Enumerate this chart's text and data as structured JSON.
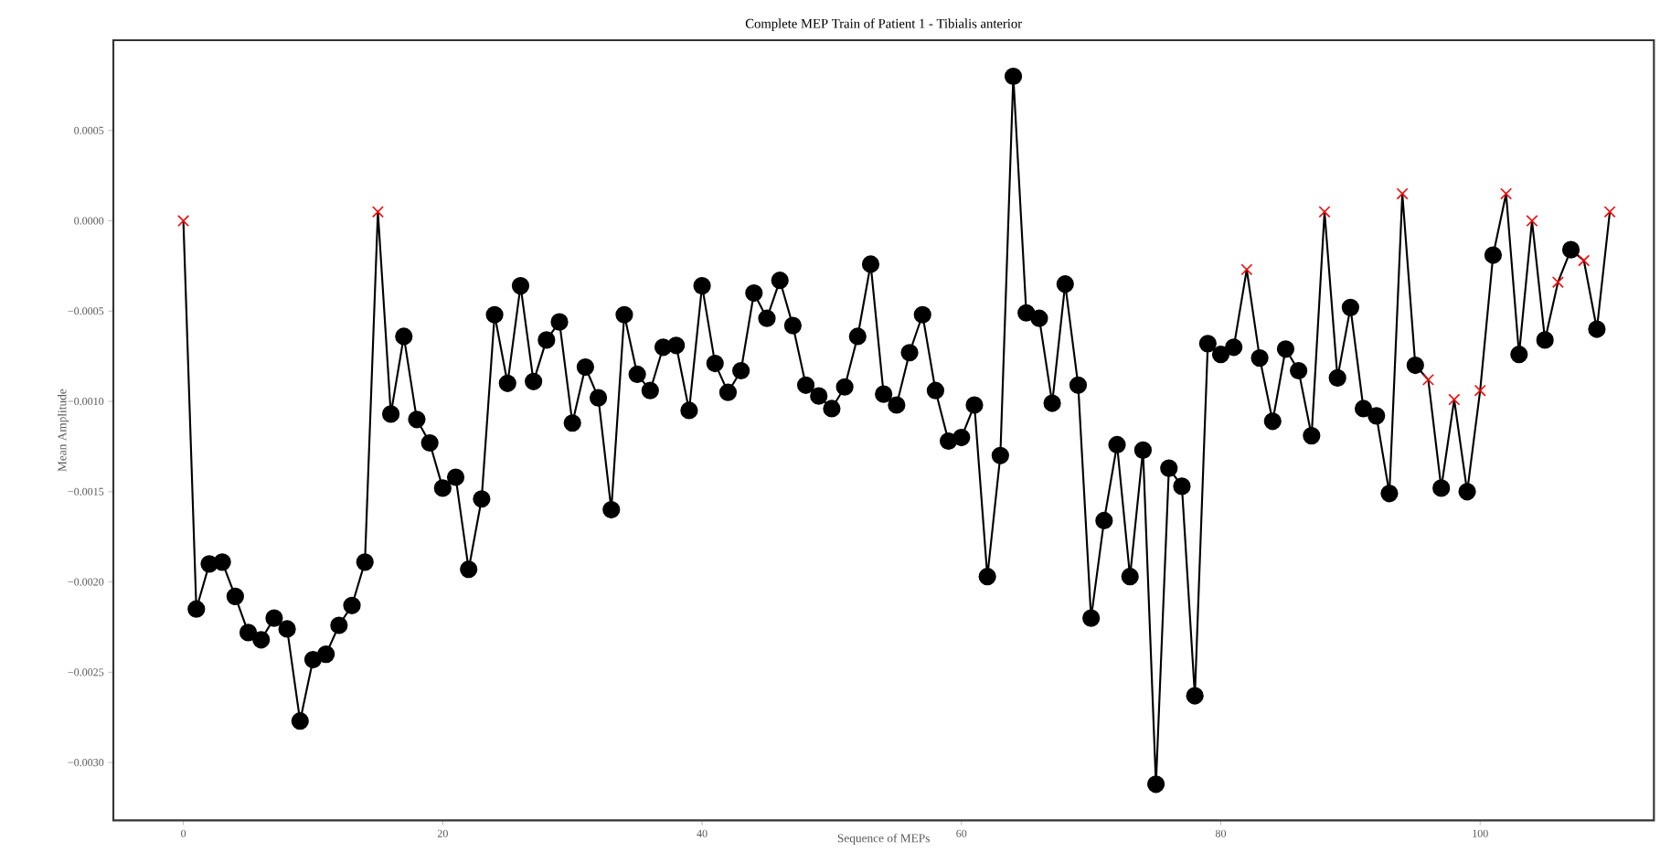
{
  "chart_data": {
    "type": "line",
    "title": "Complete MEP Train of Patient 1 - Tibialis anterior",
    "xlabel": "Sequence of MEPs",
    "ylabel": "Mean Amplitude",
    "x": [
      0,
      1,
      2,
      3,
      4,
      5,
      6,
      7,
      8,
      9,
      10,
      11,
      12,
      13,
      14,
      15,
      16,
      17,
      18,
      19,
      20,
      21,
      22,
      23,
      24,
      25,
      26,
      27,
      28,
      29,
      30,
      31,
      32,
      33,
      34,
      35,
      36,
      37,
      38,
      39,
      40,
      41,
      42,
      43,
      44,
      45,
      46,
      47,
      48,
      49,
      50,
      51,
      52,
      53,
      54,
      55,
      56,
      57,
      58,
      59,
      60,
      61,
      62,
      63,
      64,
      65,
      66,
      67,
      68,
      69,
      70,
      71,
      72,
      73,
      74,
      75,
      76,
      77,
      78,
      79,
      80,
      81,
      82,
      83,
      84,
      85,
      86,
      87,
      88,
      89,
      90,
      91,
      92,
      93,
      94,
      95,
      96,
      97,
      98,
      99,
      100,
      101,
      102,
      103,
      104,
      105,
      106,
      107,
      108,
      109,
      110
    ],
    "series": [
      {
        "color": "#000000",
        "marker": "none",
        "values": [
          0.0,
          -0.00215,
          -0.0019,
          -0.00189,
          -0.00208,
          -0.00228,
          -0.00232,
          -0.0022,
          -0.00226,
          -0.00277,
          -0.00243,
          -0.0024,
          -0.00224,
          -0.00213,
          -0.00189,
          5e-05,
          -0.00107,
          -0.00064,
          -0.0011,
          -0.00123,
          -0.00148,
          -0.00142,
          -0.00193,
          -0.00154,
          -0.00052,
          -0.0009,
          -0.00036,
          -0.00089,
          -0.00066,
          -0.00056,
          -0.00112,
          -0.00081,
          -0.00098,
          -0.0016,
          -0.00052,
          -0.00085,
          -0.00094,
          -0.0007,
          -0.00069,
          -0.00105,
          -0.00036,
          -0.00079,
          -0.00095,
          -0.00083,
          -0.0004,
          -0.00054,
          -0.00033,
          -0.00058,
          -0.00091,
          -0.00097,
          -0.00104,
          -0.00092,
          -0.00064,
          -0.00024,
          -0.00096,
          -0.00102,
          -0.00073,
          -0.00052,
          -0.00094,
          -0.00122,
          -0.0012,
          -0.00102,
          -0.00197,
          -0.0013,
          0.0008,
          -0.00051,
          -0.00054,
          -0.00101,
          -0.00035,
          -0.00091,
          -0.0022,
          -0.00166,
          -0.00124,
          -0.00197,
          -0.00127,
          -0.00312,
          -0.00137,
          -0.00147,
          -0.00263,
          -0.00068,
          -0.00074,
          -0.0007,
          -0.00027,
          -0.00076,
          -0.00111,
          -0.00071,
          -0.00083,
          -0.00119,
          5e-05,
          -0.00087,
          -0.00048,
          -0.00104,
          -0.00108,
          -0.00151,
          0.00015,
          -0.0008,
          -0.00088,
          -0.00148,
          -0.00099,
          -0.0015,
          -0.00094,
          -0.00019,
          0.00015,
          -0.00074,
          0.0,
          -0.00066,
          -0.00034,
          -0.00016,
          -0.00022,
          -0.0006,
          5e-05
        ]
      },
      {
        "type": "scatter",
        "color": "#000000",
        "marker": "circle",
        "values": [
          null,
          -0.00215,
          -0.0019,
          -0.00189,
          -0.00208,
          -0.00228,
          -0.00232,
          -0.0022,
          -0.00226,
          -0.00277,
          -0.00243,
          -0.0024,
          -0.00224,
          -0.00213,
          -0.00189,
          null,
          -0.00107,
          -0.00064,
          -0.0011,
          -0.00123,
          -0.00148,
          -0.00142,
          -0.00193,
          -0.00154,
          -0.00052,
          -0.0009,
          -0.00036,
          -0.00089,
          -0.00066,
          -0.00056,
          -0.00112,
          -0.00081,
          -0.00098,
          -0.0016,
          -0.00052,
          -0.00085,
          -0.00094,
          -0.0007,
          -0.00069,
          -0.00105,
          -0.00036,
          -0.00079,
          -0.00095,
          -0.00083,
          -0.0004,
          -0.00054,
          -0.00033,
          -0.00058,
          -0.00091,
          -0.00097,
          -0.00104,
          -0.00092,
          -0.00064,
          -0.00024,
          -0.00096,
          -0.00102,
          -0.00073,
          -0.00052,
          -0.00094,
          -0.00122,
          -0.0012,
          -0.00102,
          -0.00197,
          -0.0013,
          0.0008,
          -0.00051,
          -0.00054,
          -0.00101,
          -0.00035,
          -0.00091,
          -0.0022,
          -0.00166,
          -0.00124,
          -0.00197,
          -0.00127,
          -0.00312,
          -0.00137,
          -0.00147,
          -0.00263,
          -0.00068,
          -0.00074,
          -0.0007,
          null,
          -0.00076,
          -0.00111,
          -0.00071,
          -0.00083,
          -0.00119,
          null,
          -0.00087,
          -0.00048,
          -0.00104,
          -0.00108,
          -0.00151,
          null,
          -0.0008,
          null,
          -0.00148,
          null,
          -0.0015,
          null,
          -0.00019,
          null,
          -0.00074,
          null,
          -0.00066,
          null,
          -0.00016,
          null,
          -0.0006,
          null
        ]
      },
      {
        "type": "scatter",
        "color": "#ff0000",
        "marker": "cross",
        "values": [
          0.0,
          null,
          null,
          null,
          null,
          null,
          null,
          null,
          null,
          null,
          null,
          null,
          null,
          null,
          null,
          5e-05,
          null,
          null,
          null,
          null,
          null,
          null,
          null,
          null,
          null,
          null,
          null,
          null,
          null,
          null,
          null,
          null,
          null,
          null,
          null,
          null,
          null,
          null,
          null,
          null,
          null,
          null,
          null,
          null,
          null,
          null,
          null,
          null,
          null,
          null,
          null,
          null,
          null,
          null,
          null,
          null,
          null,
          null,
          null,
          null,
          null,
          null,
          null,
          null,
          null,
          null,
          null,
          null,
          null,
          null,
          null,
          null,
          null,
          null,
          null,
          null,
          null,
          null,
          null,
          null,
          null,
          null,
          -0.00027,
          null,
          null,
          null,
          null,
          null,
          5e-05,
          null,
          null,
          null,
          null,
          null,
          0.00015,
          null,
          -0.00088,
          null,
          -0.00099,
          null,
          -0.00094,
          null,
          0.00015,
          null,
          0.0,
          null,
          -0.00034,
          null,
          -0.00022,
          null,
          5e-05
        ]
      }
    ],
    "xlim": [
      -5.4,
      113.4
    ],
    "ylim": [
      -0.00332,
      0.001
    ],
    "xticks": [
      0,
      20,
      40,
      60,
      80,
      100
    ],
    "yticks": [
      {
        "value": -0.003,
        "label": "−0.0030"
      },
      {
        "value": -0.0025,
        "label": "−0.0025"
      },
      {
        "value": -0.002,
        "label": "−0.0020"
      },
      {
        "value": -0.0015,
        "label": "−0.0015"
      },
      {
        "value": -0.001,
        "label": "−0.0010"
      },
      {
        "value": -0.0005,
        "label": "−0.0005"
      },
      {
        "value": 0,
        "label": "0.0000"
      },
      {
        "value": 0.0005,
        "label": "0.0005"
      }
    ]
  }
}
